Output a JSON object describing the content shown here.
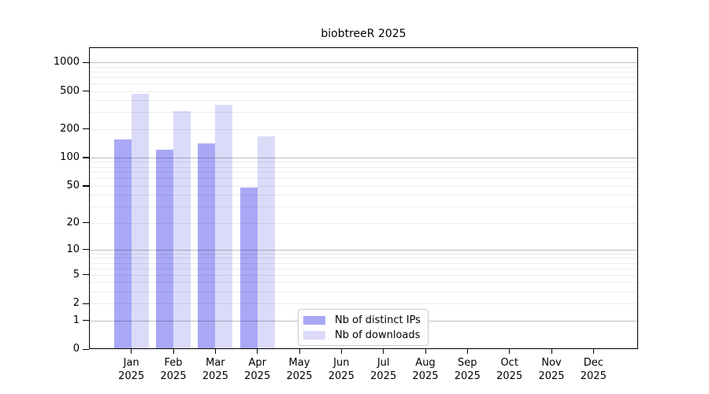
{
  "title": "biobtreeR 2025",
  "chart_data": {
    "type": "bar",
    "title": "biobtreeR 2025",
    "year_label": "2025",
    "categories": [
      "Jan",
      "Feb",
      "Mar",
      "Apr",
      "May",
      "Jun",
      "Jul",
      "Aug",
      "Sep",
      "Oct",
      "Nov",
      "Dec"
    ],
    "series": [
      {
        "key": "distinct-ips",
        "name": "Nb of distinct IPs",
        "color": "#a8a8f7",
        "values": [
          155,
          122,
          142,
          48,
          null,
          null,
          null,
          null,
          null,
          null,
          null,
          null
        ]
      },
      {
        "key": "downloads",
        "name": "Nb of downloads",
        "color": "#dbdbf9",
        "values": [
          464,
          309,
          356,
          166,
          null,
          null,
          null,
          null,
          null,
          null,
          null,
          null
        ]
      }
    ],
    "y_ticks": [
      0,
      1,
      2,
      5,
      10,
      20,
      50,
      100,
      200,
      500,
      1000
    ],
    "y_scale": "log10(value+1)",
    "ylim": [
      0,
      1400
    ],
    "grid": true,
    "legend_position": "bottom-center"
  }
}
